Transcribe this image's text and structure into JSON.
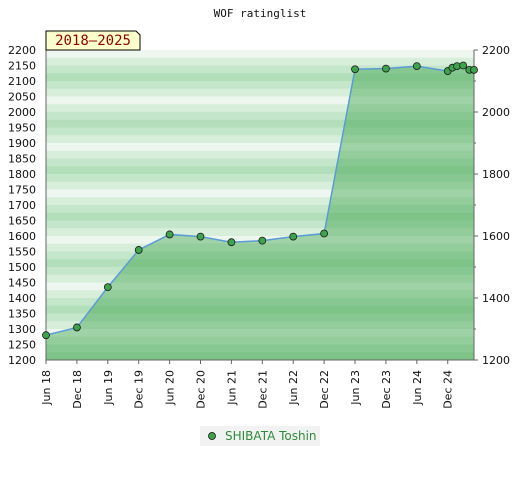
{
  "chart_data": {
    "type": "area",
    "title": "WOF ratinglist",
    "period_badge": "2018–2025",
    "xlabel": "",
    "ylabel": "",
    "ylim": [
      1200,
      2200
    ],
    "y_ticks_left": [
      1200,
      1250,
      1300,
      1350,
      1400,
      1450,
      1500,
      1550,
      1600,
      1650,
      1700,
      1750,
      1800,
      1850,
      1900,
      1950,
      2000,
      2050,
      2100,
      2150,
      2200
    ],
    "y_ticks_right": [
      1200,
      1400,
      1600,
      1800,
      2000,
      2200
    ],
    "x_ticks": [
      "Jun 18",
      "Dec 18",
      "Jun 19",
      "Dec 19",
      "Jun 20",
      "Dec 20",
      "Jun 21",
      "Dec 21",
      "Jun 22",
      "Dec 22",
      "Jun 23",
      "Dec 23",
      "Jun 24",
      "Dec 24"
    ],
    "x_tick_positions": [
      0,
      1,
      2,
      3,
      4,
      5,
      6,
      7,
      8,
      9,
      10,
      11,
      12,
      13
    ],
    "xlim": [
      0,
      13.85
    ],
    "legend_position": "bottom-center",
    "series": [
      {
        "name": "SHIBATA Toshin",
        "color": "#2e8b3a",
        "line_color": "#5b9bd5",
        "x": [
          0,
          1,
          2,
          3,
          4,
          5,
          6,
          7,
          8,
          9,
          10,
          11,
          12,
          13,
          13.15,
          13.3,
          13.5,
          13.7,
          13.85
        ],
        "values": [
          1280,
          1305,
          1435,
          1555,
          1605,
          1598,
          1580,
          1585,
          1598,
          1608,
          2138,
          2140,
          2148,
          2132,
          2143,
          2148,
          2150,
          2136,
          2136
        ]
      }
    ]
  }
}
